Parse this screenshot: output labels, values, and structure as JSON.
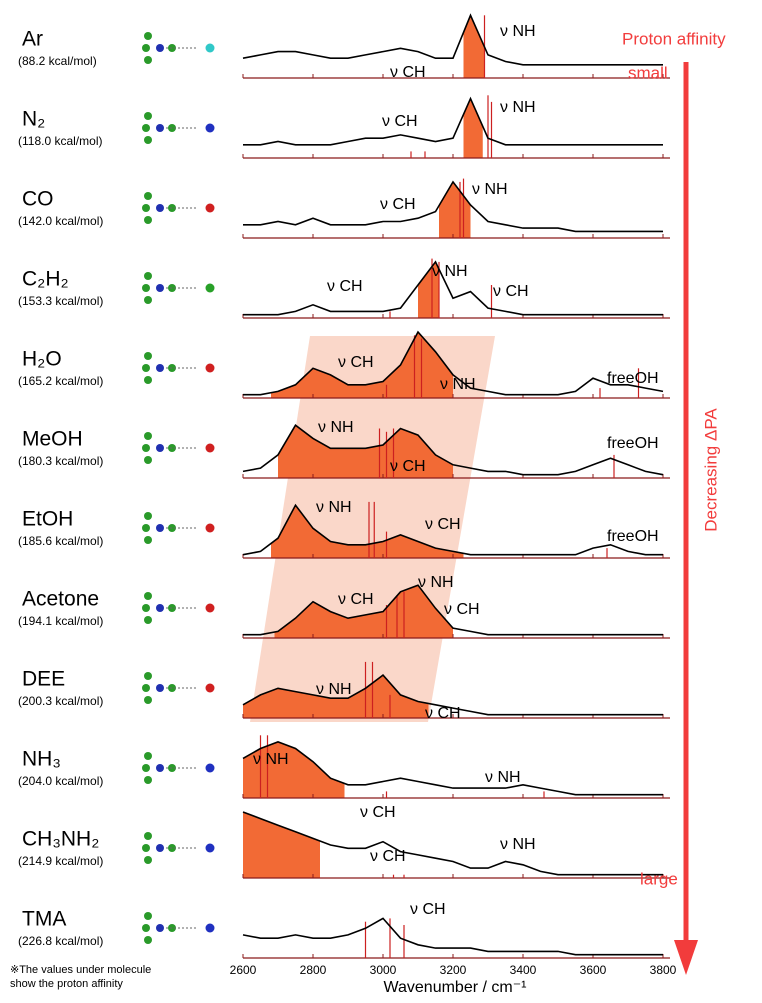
{
  "chart_data": {
    "type": "spectra",
    "xlabel": "Wavenumber / cm⁻¹",
    "x": [
      2600,
      2650,
      2700,
      2750,
      2800,
      2850,
      2900,
      2950,
      3000,
      3050,
      3100,
      3150,
      3200,
      3250,
      3300,
      3350,
      3400,
      3450,
      3500,
      3550,
      3600,
      3650,
      3700,
      3750,
      3800
    ],
    "xlim": [
      2600,
      3820
    ],
    "xticks": [
      2600,
      2800,
      3000,
      3200,
      3400,
      3600,
      3800
    ],
    "ylim": [
      0,
      1
    ],
    "trace_color": "#000000",
    "calc_color": "#cc2020",
    "fill_color": "#f26a35",
    "band_color": "#f6b79c",
    "arrow_color": "#f23c3c",
    "proton_affinity_label": "Proton affinity",
    "small_label": "small",
    "large_label": "large",
    "arrow_label": "Decreasing ΔPA",
    "footnote": [
      "※The values under molecule",
      "show the proton affinity"
    ],
    "panels": [
      {
        "name": "Ar",
        "pa": "(88.2 kcal/mol)",
        "values": [
          0.3,
          0.35,
          0.4,
          0.4,
          0.35,
          0.3,
          0.3,
          0.35,
          0.4,
          0.45,
          0.4,
          0.3,
          0.3,
          0.95,
          0.35,
          0.25,
          0.2,
          0.2,
          0.2,
          0.2,
          0.2,
          0.2,
          0.2,
          0.2,
          0.2
        ],
        "calc_x": [
          3290
        ],
        "calc_h": [
          0.95
        ],
        "fill_range": [
          3230,
          3290
        ],
        "annotations": [
          "ν NH",
          "ν CH"
        ]
      },
      {
        "name": "N₂",
        "pa": "(118.0 kcal/mol)",
        "values": [
          0.2,
          0.2,
          0.25,
          0.2,
          0.2,
          0.2,
          0.25,
          0.3,
          0.3,
          0.35,
          0.3,
          0.25,
          0.3,
          0.9,
          0.3,
          0.2,
          0.2,
          0.2,
          0.2,
          0.2,
          0.2,
          0.2,
          0.2,
          0.2,
          0.2
        ],
        "calc_x": [
          3080,
          3120,
          3300,
          3310
        ],
        "calc_h": [
          0.1,
          0.1,
          0.95,
          0.85
        ],
        "fill_range": [
          3230,
          3285
        ],
        "annotations": [
          "ν CH",
          "ν NH"
        ]
      },
      {
        "name": "CO",
        "pa": "(142.0 kcal/mol)",
        "values": [
          0.2,
          0.2,
          0.25,
          0.2,
          0.3,
          0.2,
          0.2,
          0.2,
          0.25,
          0.25,
          0.3,
          0.4,
          0.85,
          0.5,
          0.25,
          0.2,
          0.15,
          0.15,
          0.15,
          0.1,
          0.1,
          0.1,
          0.1,
          0.1,
          0.1
        ],
        "calc_x": [
          3220,
          3230
        ],
        "calc_h": [
          0.85,
          0.9
        ],
        "fill_range": [
          3160,
          3250
        ],
        "annotations": [
          "ν CH",
          "ν NH"
        ]
      },
      {
        "name": "C₂H₂",
        "pa": "(153.3 kcal/mol)",
        "values": [
          0.05,
          0.05,
          0.05,
          0.1,
          0.2,
          0.1,
          0.1,
          0.1,
          0.1,
          0.15,
          0.5,
          0.85,
          0.3,
          0.4,
          0.15,
          0.1,
          0.05,
          0.05,
          0.05,
          0.05,
          0.05,
          0.05,
          0.05,
          0.05,
          0.05
        ],
        "calc_x": [
          3020,
          3140,
          3160,
          3310
        ],
        "calc_h": [
          0.1,
          0.9,
          0.85,
          0.5
        ],
        "fill_range": [
          3100,
          3160
        ],
        "annotations": [
          "ν CH",
          "ν NH",
          "ν CH"
        ]
      },
      {
        "name": "H₂O",
        "pa": "(165.2 kcal/mol)",
        "values": [
          0.05,
          0.05,
          0.1,
          0.2,
          0.45,
          0.35,
          0.2,
          0.2,
          0.25,
          0.5,
          1.0,
          0.7,
          0.35,
          0.15,
          0.1,
          0.05,
          0.05,
          0.05,
          0.05,
          0.1,
          0.3,
          0.2,
          0.2,
          0.15,
          0.1
        ],
        "calc_x": [
          3010,
          3090,
          3110,
          3620,
          3730
        ],
        "calc_h": [
          0.2,
          0.95,
          0.9,
          0.15,
          0.45
        ],
        "fill_range": [
          2680,
          3200
        ],
        "annotations": [
          "ν CH",
          "ν NH",
          "freeOH"
        ]
      },
      {
        "name": "MeOH",
        "pa": "(180.3 kcal/mol)",
        "values": [
          0.1,
          0.15,
          0.35,
          0.8,
          0.6,
          0.45,
          0.45,
          0.45,
          0.5,
          0.75,
          0.65,
          0.35,
          0.2,
          0.15,
          0.1,
          0.1,
          0.05,
          0.05,
          0.05,
          0.1,
          0.2,
          0.3,
          0.2,
          0.1,
          0.05
        ],
        "calc_x": [
          2990,
          3010,
          3030,
          3660
        ],
        "calc_h": [
          0.75,
          0.7,
          0.75,
          0.35
        ],
        "fill_range": [
          2700,
          3200
        ],
        "annotations": [
          "ν NH",
          "ν CH",
          "freeOH"
        ]
      },
      {
        "name": "EtOH",
        "pa": "(185.6 kcal/mol)",
        "values": [
          0.05,
          0.1,
          0.3,
          0.8,
          0.45,
          0.25,
          0.2,
          0.2,
          0.25,
          0.35,
          0.25,
          0.15,
          0.1,
          0.05,
          0.05,
          0.05,
          0.05,
          0.05,
          0.05,
          0.05,
          0.15,
          0.2,
          0.1,
          0.05,
          0.05
        ],
        "calc_x": [
          2960,
          2975,
          3010,
          3640
        ],
        "calc_h": [
          0.85,
          0.85,
          0.4,
          0.15
        ],
        "fill_range": [
          2680,
          3230
        ],
        "annotations": [
          "ν NH",
          "ν CH",
          "freeOH"
        ]
      },
      {
        "name": "Acetone",
        "pa": "(194.1 kcal/mol)",
        "values": [
          0.05,
          0.05,
          0.1,
          0.3,
          0.55,
          0.4,
          0.3,
          0.35,
          0.4,
          0.7,
          0.8,
          0.45,
          0.15,
          0.1,
          0.05,
          0.05,
          0.05,
          0.05,
          0.05,
          0.05,
          0.05,
          0.05,
          0.05,
          0.05,
          0.05
        ],
        "calc_x": [
          3010,
          3040,
          3060
        ],
        "calc_h": [
          0.5,
          0.65,
          0.7
        ],
        "fill_range": [
          2690,
          3200
        ],
        "annotations": [
          "ν CH",
          "ν NH",
          "ν CH"
        ]
      },
      {
        "name": "DEE",
        "pa": "(200.3 kcal/mol)",
        "values": [
          0.2,
          0.35,
          0.45,
          0.4,
          0.35,
          0.3,
          0.3,
          0.45,
          0.65,
          0.35,
          0.25,
          0.2,
          0.15,
          0.1,
          0.05,
          0.05,
          0.05,
          0.05,
          0.05,
          0.05,
          0.05,
          0.05,
          0.05,
          0.05,
          0.05
        ],
        "calc_x": [
          2950,
          2970,
          3020
        ],
        "calc_h": [
          0.85,
          0.85,
          0.35
        ],
        "fill_range": [
          2600,
          3130
        ],
        "annotations": [
          "ν NH",
          "ν CH"
        ]
      },
      {
        "name": "NH₃",
        "pa": "(204.0 kcal/mol)",
        "values": [
          0.6,
          0.75,
          0.85,
          0.75,
          0.55,
          0.3,
          0.2,
          0.2,
          0.25,
          0.3,
          0.25,
          0.2,
          0.15,
          0.15,
          0.15,
          0.15,
          0.2,
          0.15,
          0.1,
          0.05,
          0.05,
          0.05,
          0.05,
          0.05,
          0.05
        ],
        "calc_x": [
          2650,
          2670,
          3010,
          3460
        ],
        "calc_h": [
          0.95,
          0.95,
          0.1,
          0.1
        ],
        "fill_range": [
          2600,
          2890
        ],
        "annotations": [
          "ν NH",
          "ν CH",
          "ν NH"
        ]
      },
      {
        "name": "CH₃NH₂",
        "pa": "(214.9 kcal/mol)",
        "values": [
          1.0,
          0.9,
          0.8,
          0.7,
          0.6,
          0.5,
          0.45,
          0.45,
          0.55,
          0.4,
          0.35,
          0.3,
          0.25,
          0.15,
          0.15,
          0.25,
          0.2,
          0.1,
          0.05,
          0.05,
          0.05,
          0.05,
          0.05,
          0.05,
          0.05
        ],
        "calc_x": [
          3030,
          3060
        ],
        "calc_h": [
          0.05,
          0.05
        ],
        "fill_range": [
          2600,
          2820
        ],
        "annotations": [
          "ν CH",
          "ν NH"
        ]
      },
      {
        "name": "TMA",
        "pa": "(226.8 kcal/mol)",
        "values": [
          0.35,
          0.3,
          0.3,
          0.35,
          0.3,
          0.3,
          0.35,
          0.45,
          0.6,
          0.3,
          0.2,
          0.15,
          0.15,
          0.15,
          0.1,
          0.1,
          0.1,
          0.1,
          0.1,
          0.05,
          0.05,
          0.05,
          0.05,
          0.05,
          0.05
        ],
        "calc_x": [
          2950,
          3020,
          3060
        ],
        "calc_h": [
          0.55,
          0.6,
          0.5
        ],
        "annotations": [
          "ν CH"
        ]
      }
    ]
  }
}
